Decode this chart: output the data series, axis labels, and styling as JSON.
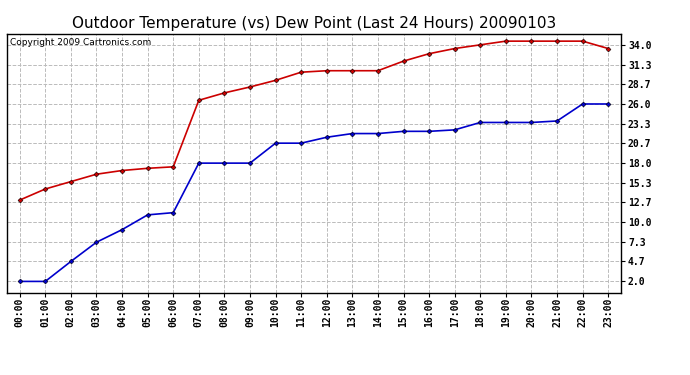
{
  "title": "Outdoor Temperature (vs) Dew Point (Last 24 Hours) 20090103",
  "copyright": "Copyright 2009 Cartronics.com",
  "x_labels": [
    "00:00",
    "01:00",
    "02:00",
    "03:00",
    "04:00",
    "05:00",
    "06:00",
    "07:00",
    "08:00",
    "09:00",
    "10:00",
    "11:00",
    "12:00",
    "13:00",
    "14:00",
    "15:00",
    "16:00",
    "17:00",
    "18:00",
    "19:00",
    "20:00",
    "21:00",
    "22:00",
    "23:00"
  ],
  "temp_values": [
    13.0,
    14.5,
    15.5,
    16.5,
    17.0,
    17.3,
    17.5,
    26.5,
    27.5,
    28.3,
    29.2,
    30.3,
    30.5,
    30.5,
    30.5,
    31.8,
    32.8,
    33.5,
    34.0,
    34.5,
    34.5,
    34.5,
    34.5,
    33.5
  ],
  "dew_values": [
    2.0,
    2.0,
    4.7,
    7.3,
    9.0,
    11.0,
    11.3,
    18.0,
    18.0,
    18.0,
    20.7,
    20.7,
    21.5,
    22.0,
    22.0,
    22.3,
    22.3,
    22.5,
    23.5,
    23.5,
    23.5,
    23.7,
    26.0,
    26.0
  ],
  "temp_color": "#cc0000",
  "dew_color": "#0000cc",
  "marker": "D",
  "marker_size": 2.5,
  "line_width": 1.2,
  "yticks": [
    2.0,
    4.7,
    7.3,
    10.0,
    12.7,
    15.3,
    18.0,
    20.7,
    23.3,
    26.0,
    28.7,
    31.3,
    34.0
  ],
  "ylim": [
    0.5,
    35.5
  ],
  "bg_color": "#ffffff",
  "plot_bg_color": "#ffffff",
  "grid_color": "#bbbbbb",
  "title_fontsize": 11,
  "tick_fontsize": 7,
  "copyright_fontsize": 6.5
}
